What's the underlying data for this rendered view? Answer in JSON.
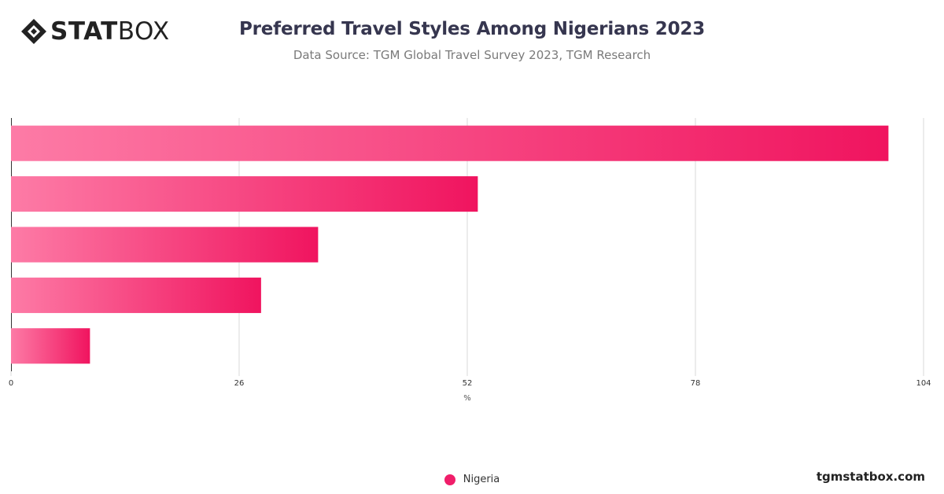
{
  "brand": {
    "logo_bold": "STAT",
    "logo_light": "BOX",
    "watermark": "tgmstatbox.com"
  },
  "colors": {
    "bar_start": "#fd7ba6",
    "bar_end": "#f0145f",
    "grid": "#d9d9d9",
    "axis": "#333333"
  },
  "chart_data": {
    "type": "bar",
    "orientation": "horizontal",
    "title": "Preferred Travel Styles Among Nigerians 2023",
    "subtitle": "Data Source: TGM Global Travel Survey 2023, TGM Research",
    "xlabel": "%",
    "ylabel": "",
    "xlim": [
      0,
      104
    ],
    "xticks": [
      0,
      26,
      52,
      78,
      104
    ],
    "categories": [
      "",
      "",
      "",
      "",
      ""
    ],
    "series": [
      {
        "name": "Nigeria",
        "values": [
          100,
          53.2,
          35,
          28.5,
          9
        ]
      }
    ],
    "grid": true,
    "legend_position": "bottom"
  }
}
